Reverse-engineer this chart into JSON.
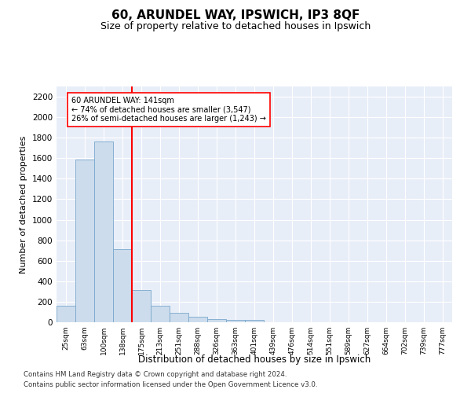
{
  "title_line1": "60, ARUNDEL WAY, IPSWICH, IP3 8QF",
  "title_line2": "Size of property relative to detached houses in Ipswich",
  "xlabel": "Distribution of detached houses by size in Ipswich",
  "ylabel": "Number of detached properties",
  "categories": [
    "25sqm",
    "63sqm",
    "100sqm",
    "138sqm",
    "175sqm",
    "213sqm",
    "251sqm",
    "288sqm",
    "326sqm",
    "363sqm",
    "401sqm",
    "439sqm",
    "476sqm",
    "514sqm",
    "551sqm",
    "589sqm",
    "627sqm",
    "664sqm",
    "702sqm",
    "739sqm",
    "777sqm"
  ],
  "values": [
    160,
    1590,
    1760,
    710,
    315,
    160,
    90,
    55,
    30,
    20,
    20,
    0,
    0,
    0,
    0,
    0,
    0,
    0,
    0,
    0,
    0
  ],
  "bar_color": "#ccdcec",
  "bar_edge_color": "#7aa8cc",
  "annotation_line1": "60 ARUNDEL WAY: 141sqm",
  "annotation_line2": "← 74% of detached houses are smaller (3,547)",
  "annotation_line3": "26% of semi-detached houses are larger (1,243) →",
  "ylim": [
    0,
    2300
  ],
  "yticks": [
    0,
    200,
    400,
    600,
    800,
    1000,
    1200,
    1400,
    1600,
    1800,
    2000,
    2200
  ],
  "background_color": "#e8eef8",
  "grid_color": "#ffffff",
  "footer_line1": "Contains HM Land Registry data © Crown copyright and database right 2024.",
  "footer_line2": "Contains public sector information licensed under the Open Government Licence v3.0."
}
